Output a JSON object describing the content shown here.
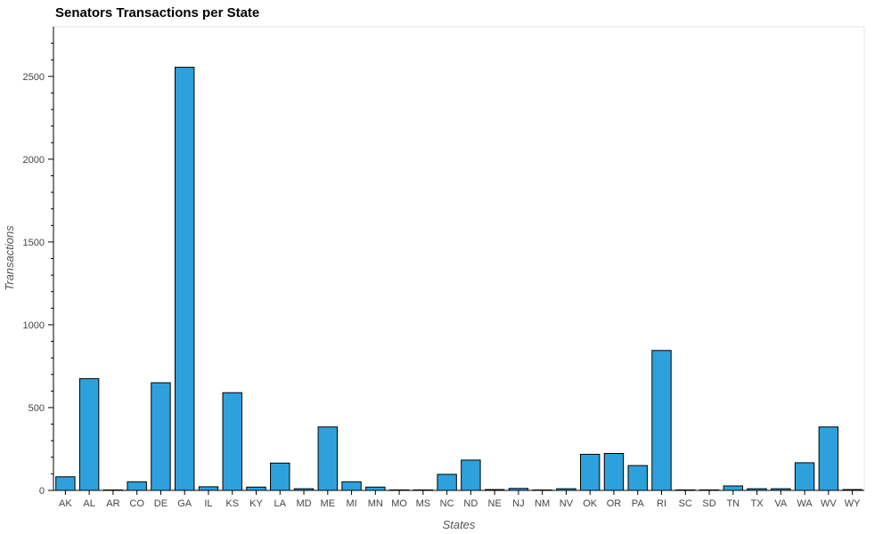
{
  "chart_data": {
    "type": "bar",
    "title": "Senators Transactions per State",
    "xlabel": "States",
    "ylabel": "Transactions",
    "categories": [
      "AK",
      "AL",
      "AR",
      "CO",
      "DE",
      "GA",
      "IL",
      "KS",
      "KY",
      "LA",
      "MD",
      "ME",
      "MI",
      "MN",
      "MO",
      "MS",
      "NC",
      "ND",
      "NE",
      "NJ",
      "NM",
      "NV",
      "OK",
      "OR",
      "PA",
      "RI",
      "SC",
      "SD",
      "TN",
      "TX",
      "VA",
      "WA",
      "WV",
      "WY"
    ],
    "values": [
      82,
      675,
      2,
      52,
      650,
      2555,
      22,
      590,
      20,
      165,
      10,
      383,
      52,
      20,
      3,
      3,
      97,
      183,
      5,
      12,
      2,
      10,
      218,
      223,
      150,
      845,
      3,
      3,
      27,
      10,
      10,
      167,
      383,
      5
    ],
    "ylim": [
      0,
      2800
    ],
    "yticks": [
      0,
      500,
      1000,
      1500,
      2000,
      2500
    ],
    "bar_color": "#2ea1dc",
    "grid": false
  }
}
